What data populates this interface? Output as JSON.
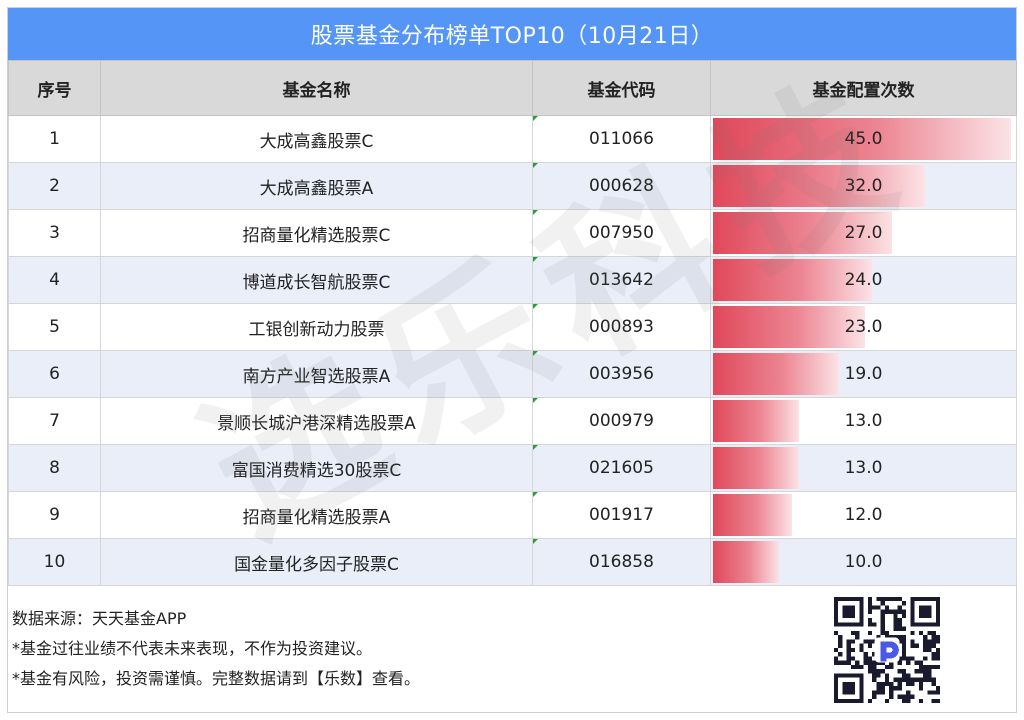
{
  "title": "股票基金分布榜单TOP10（10月21日）",
  "watermark": "选乐科技",
  "table": {
    "headers": [
      "序号",
      "基金名称",
      "基金代码",
      "基金配置次数"
    ],
    "rows": [
      {
        "rank": "1",
        "name": "大成高鑫股票C",
        "code": "011066",
        "count": "45.0"
      },
      {
        "rank": "2",
        "name": "大成高鑫股票A",
        "code": "000628",
        "count": "32.0"
      },
      {
        "rank": "3",
        "name": "招商量化精选股票C",
        "code": "007950",
        "count": "27.0"
      },
      {
        "rank": "4",
        "name": "博道成长智航股票C",
        "code": "013642",
        "count": "24.0"
      },
      {
        "rank": "5",
        "name": "工银创新动力股票",
        "code": "000893",
        "count": "23.0"
      },
      {
        "rank": "6",
        "name": "南方产业智选股票A",
        "code": "003956",
        "count": "19.0"
      },
      {
        "rank": "7",
        "name": "景顺长城沪港深精选股票A",
        "code": "000979",
        "count": "13.0"
      },
      {
        "rank": "8",
        "name": "富国消费精选30股票C",
        "code": "021605",
        "count": "13.0"
      },
      {
        "rank": "9",
        "name": "招商量化精选股票A",
        "code": "001917",
        "count": "12.0"
      },
      {
        "rank": "10",
        "name": "国金量化多因子股票C",
        "code": "016858",
        "count": "10.0"
      }
    ]
  },
  "footer": {
    "source": "数据来源：天天基金APP",
    "note1": "*基金过往业绩不代表未来表现，不作为投资建议。",
    "note2": "*基金有风险，投资需谨慎。完整数据请到【乐数】查看。"
  },
  "bar_max": 45,
  "bar_color": "#e0485a",
  "header_color": "#5595f5"
}
